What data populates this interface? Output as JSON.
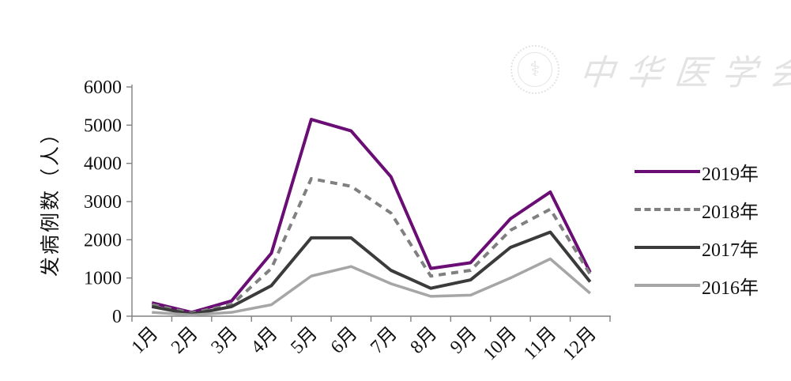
{
  "watermark": {
    "text": "中华医学会"
  },
  "chart_data": {
    "type": "line",
    "title": "",
    "xlabel": "",
    "ylabel": "发病例数（人）",
    "categories": [
      "1月",
      "2月",
      "3月",
      "4月",
      "5月",
      "6月",
      "7月",
      "8月",
      "9月",
      "10月",
      "11月",
      "12月"
    ],
    "series": [
      {
        "name": "2019年",
        "color": "#6A0D74",
        "dash": "solid",
        "width": 4,
        "values": [
          350,
          100,
          400,
          1650,
          5150,
          4850,
          3650,
          1250,
          1400,
          2550,
          3250,
          1150
        ]
      },
      {
        "name": "2018年",
        "color": "#808080",
        "dash": "dashed",
        "width": 4,
        "values": [
          300,
          80,
          300,
          1250,
          3600,
          3400,
          2700,
          1050,
          1200,
          2250,
          2800,
          1100
        ]
      },
      {
        "name": "2017年",
        "color": "#3B3B3B",
        "dash": "solid",
        "width": 4,
        "values": [
          250,
          50,
          250,
          800,
          2050,
          2050,
          1200,
          730,
          950,
          1800,
          2200,
          900
        ]
      },
      {
        "name": "2016年",
        "color": "#A6A6A6",
        "dash": "solid",
        "width": 3.5,
        "values": [
          100,
          30,
          100,
          300,
          1050,
          1300,
          850,
          520,
          550,
          1000,
          1500,
          600
        ]
      }
    ],
    "ylim": [
      0,
      6000
    ],
    "ytick_interval": 1000,
    "ytick_labels": [
      "0",
      "1000",
      "2000",
      "3000",
      "4000",
      "5000",
      "6000"
    ],
    "grid": false,
    "legend_position": "right",
    "axis_color": "#808080",
    "text_color": "#111111"
  }
}
